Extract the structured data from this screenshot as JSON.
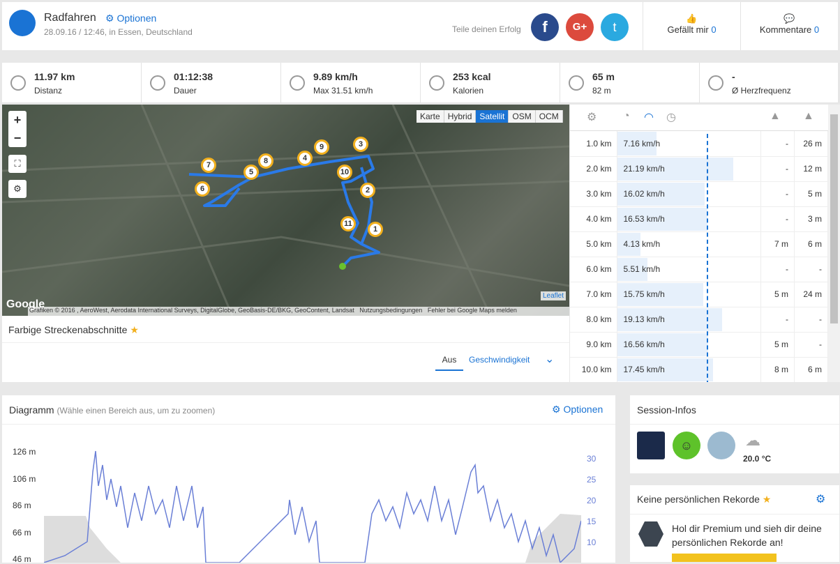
{
  "header": {
    "activity": "Radfahren",
    "options": "Optionen",
    "date": "28.09.16 / 12:46, in Essen, Deutschland",
    "share": "Teile deinen Erfolg",
    "like_label": "Gefällt mir",
    "like_count": "0",
    "comments_label": "Kommentare",
    "comments_count": "0"
  },
  "stats": [
    {
      "value": "11.97 km",
      "label": "Distanz"
    },
    {
      "value": "01:12:38",
      "label": "Dauer"
    },
    {
      "value": "9.89 km/h",
      "label": "Max 31.51 km/h"
    },
    {
      "value": "253 kcal",
      "label": "Kalorien"
    },
    {
      "value": "65 m",
      "label": "82 m"
    },
    {
      "value": "-",
      "label": "Ø Herzfrequenz"
    }
  ],
  "map": {
    "layers": [
      "Karte",
      "Hybrid",
      "Satellit",
      "OSM",
      "OCM"
    ],
    "active_layer": "Satellit",
    "markers": [
      "1",
      "2",
      "3",
      "4",
      "5",
      "6",
      "7",
      "8",
      "9",
      "10",
      "11"
    ],
    "google": "Google",
    "attribution": "Grafiken © 2016 , AeroWest, Aerodata International Surveys, DigitalGlobe, GeoBasis-DE/BKG, GeoContent, Landsat",
    "terms": "Nutzungsbedingungen",
    "report": "Fehler bei Google Maps melden",
    "leaflet": "Leaflet"
  },
  "segments": {
    "title": "Farbige Streckenabschnitte",
    "tabs": [
      "Aus",
      "Geschwindigkeit"
    ]
  },
  "splits": {
    "rows": [
      [
        "1.0 km",
        "7.16 km/h",
        "-",
        "26 m"
      ],
      [
        "2.0 km",
        "21.19 km/h",
        "-",
        "12 m"
      ],
      [
        "3.0 km",
        "16.02 km/h",
        "-",
        "5 m"
      ],
      [
        "4.0 km",
        "16.53 km/h",
        "-",
        "3 m"
      ],
      [
        "5.0 km",
        "4.13 km/h",
        "7 m",
        "6 m"
      ],
      [
        "6.0 km",
        "5.51 km/h",
        "-",
        "-"
      ],
      [
        "7.0 km",
        "15.75 km/h",
        "5 m",
        "24 m"
      ],
      [
        "8.0 km",
        "19.13 km/h",
        "-",
        "-"
      ],
      [
        "9.0 km",
        "16.56 km/h",
        "5 m",
        "-"
      ],
      [
        "10.0 km",
        "17.45 km/h",
        "8 m",
        "6 m"
      ]
    ]
  },
  "diagram": {
    "title": "Diagramm",
    "hint": "(Wähle einen Bereich aus, um zu zoomen)",
    "options": "Optionen",
    "left_ticks": [
      "126 m",
      "106 m",
      "86 m",
      "66 m",
      "46 m"
    ],
    "right_ticks": [
      "30",
      "25",
      "20",
      "15",
      "10"
    ]
  },
  "session": {
    "title": "Session-Infos",
    "temperature": "20.0 °C"
  },
  "records": {
    "title": "Keine persönlichen Rekorde",
    "text": "Hol dir Premium und sieh dir deine persönlichen Rekorde an!"
  }
}
